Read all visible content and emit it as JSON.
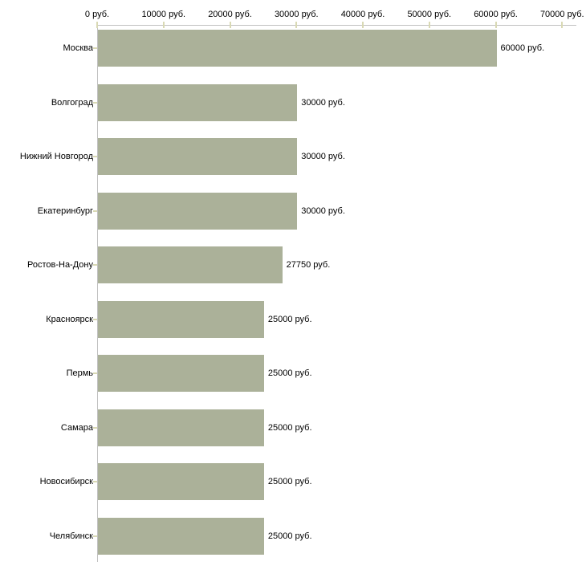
{
  "chart_data": {
    "type": "bar",
    "orientation": "horizontal",
    "title": "",
    "xlabel": "",
    "ylabel": "",
    "categories": [
      "Москва",
      "Волгоград",
      "Нижний Новгород",
      "Екатеринбург",
      "Ростов-На-Дону",
      "Красноярск",
      "Пермь",
      "Самара",
      "Новосибирск",
      "Челябинск"
    ],
    "values": [
      60000,
      30000,
      30000,
      30000,
      27750,
      25000,
      25000,
      25000,
      25000,
      25000
    ],
    "value_labels": [
      "60000 руб.",
      "30000 руб.",
      "30000 руб.",
      "30000 руб.",
      "27750 руб.",
      "25000 руб.",
      "25000 руб.",
      "25000 руб.",
      "25000 руб.",
      "25000 руб."
    ],
    "x_ticks": [
      0,
      10000,
      20000,
      30000,
      40000,
      50000,
      60000,
      70000
    ],
    "x_tick_labels": [
      "0 руб.",
      "10000 руб.",
      "20000 руб.",
      "30000 руб.",
      "40000 руб.",
      "50000 руб.",
      "60000 руб.",
      "70000 руб."
    ],
    "xlim": [
      0,
      72000
    ],
    "grid": false,
    "legend": "none",
    "colors": {
      "bar_fill": "#abb199",
      "axis_line": "#c0c0c0",
      "tick_mark": "#d9d9b4",
      "text": "#000000",
      "background": "#ffffff"
    }
  }
}
